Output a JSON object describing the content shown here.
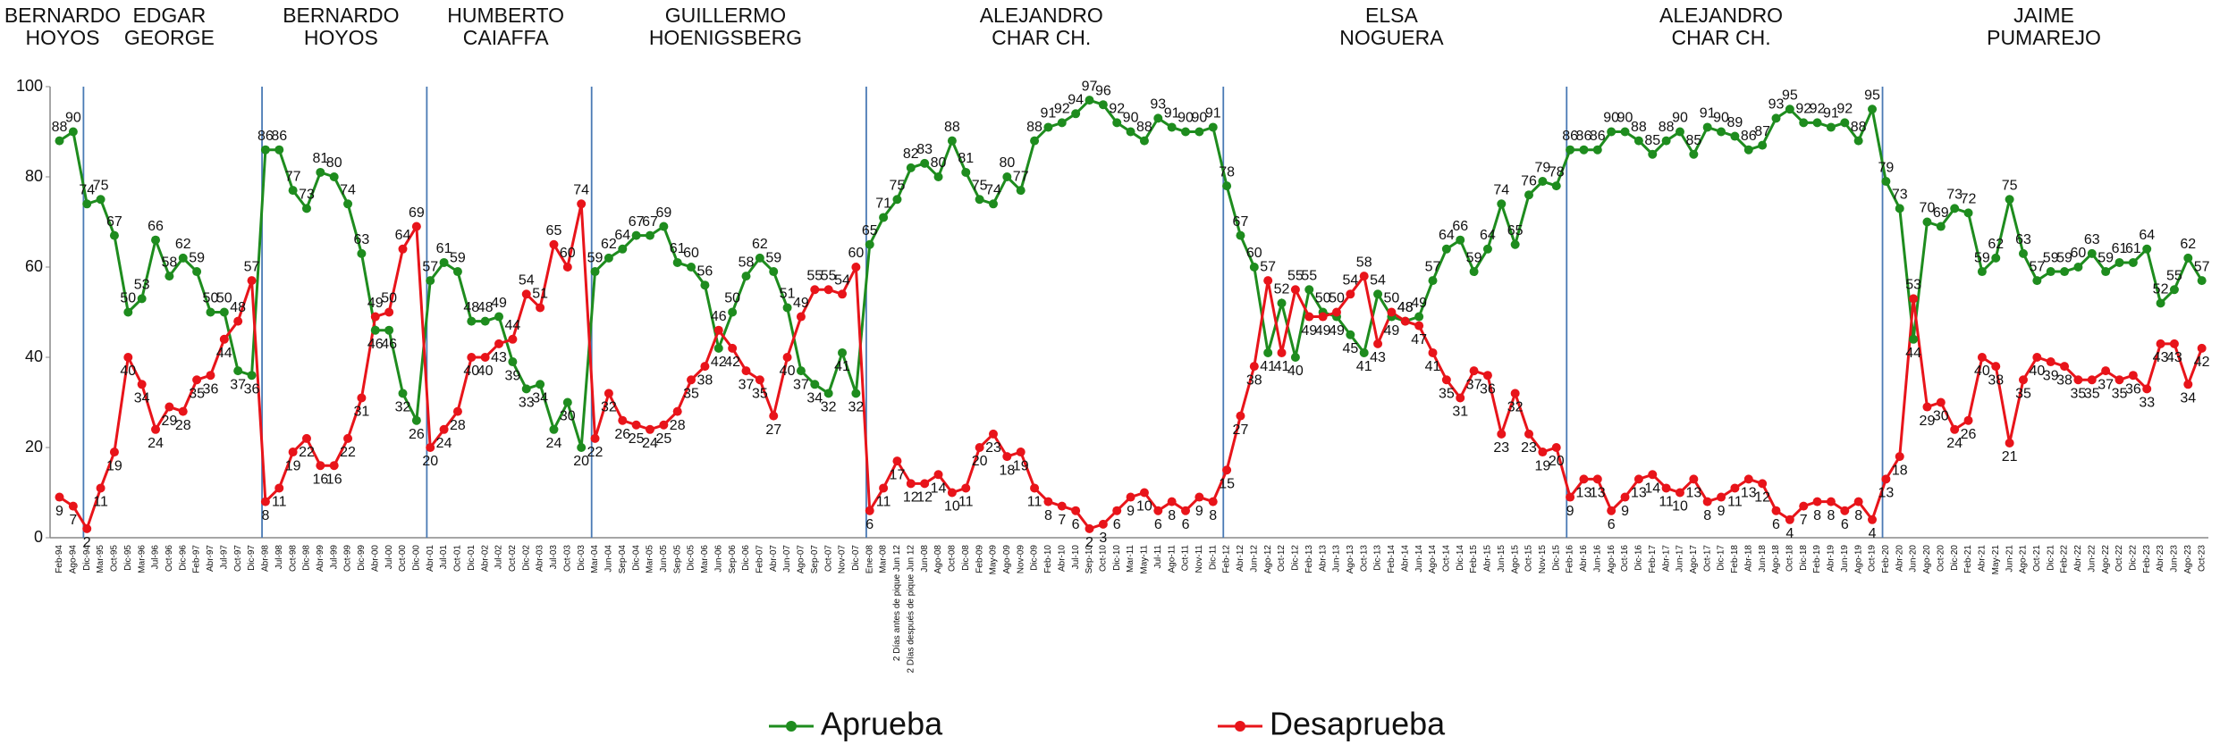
{
  "chart_data": {
    "type": "line",
    "governors": [
      [
        "BERNARDO",
        "HOYOS"
      ],
      [
        "EDGAR",
        "GEORGE"
      ],
      [
        "BERNARDO",
        "HOYOS"
      ],
      [
        "HUMBERTO",
        "CAIAFFA"
      ],
      [
        "GUILLERMO",
        "HOENIGSBERG"
      ],
      [
        "ALEJANDRO",
        "CHAR CH."
      ],
      [
        "ELSA",
        "NOGUERA"
      ],
      [
        "ALEJANDRO",
        "CHAR CH."
      ],
      [
        "JAIME",
        "PUMAREJO"
      ]
    ],
    "categories": [
      "Feb-94",
      "Ago-94",
      "Dic-94",
      "Mar-95",
      "Oct-95",
      "Dic-95",
      "Mar-96",
      "Jul-96",
      "Oct-96",
      "Dic-96",
      "Feb-97",
      "Abr-97",
      "Jul-97",
      "Oct-97",
      "Dic-97",
      "Abr-98",
      "Jul-98",
      "Oct-98",
      "Dic-98",
      "Abr-99",
      "Jul-99",
      "Oct-99",
      "Dic-99",
      "Abr-00",
      "Jul-00",
      "Oct-00",
      "Dic-00",
      "Abr-01",
      "Jul-01",
      "Oct-01",
      "Dic-01",
      "Abr-02",
      "Jul-02",
      "Oct-02",
      "Dic-02",
      "Abr-03",
      "Jul-03",
      "Oct-03",
      "Dic-03",
      "Mar-04",
      "Jun-04",
      "Sep-04",
      "Dic-04",
      "Mar-05",
      "Jun-05",
      "Sep-05",
      "Dic-05",
      "Mar-06",
      "Jun-06",
      "Sep-06",
      "Dic-06",
      "Feb-07",
      "Abr-07",
      "Jun-07",
      "Ago-07",
      "Sep-07",
      "Oct-07",
      "Nov-07",
      "Dic-07",
      "Ene-08",
      "Mar-08",
      "2 Días antes de pique Jun 12",
      "2 Días después de pique Jun 12",
      "Jun-08",
      "Ago-08",
      "Oct-08",
      "Dic-08",
      "Feb-09",
      "May-09",
      "Ago-09",
      "Nov-09",
      "Dic-09",
      "Feb-10",
      "Abr-10",
      "Jul-10",
      "Sep-10",
      "Oct-10",
      "Dic-10",
      "Mar-11",
      "May-11",
      "Jul-11",
      "Ago-11",
      "Oct-11",
      "Nov-11",
      "Dic-11",
      "Feb-12",
      "Abr-12",
      "Jun-12",
      "Ago-12",
      "Oct-12",
      "Dic-12",
      "Feb-13",
      "Abr-13",
      "Jun-13",
      "Ago-13",
      "Oct-13",
      "Dic-13",
      "Feb-14",
      "Abr-14",
      "Jun-14",
      "Ago-14",
      "Oct-14",
      "Dic-14",
      "Feb-15",
      "Abr-15",
      "Jun-15",
      "Ago-15",
      "Oct-15",
      "Nov-15",
      "Dic-15",
      "Feb-16",
      "Abr-16",
      "Jun-16",
      "Ago-16",
      "Oct-16",
      "Dic-16",
      "Feb-17",
      "Abr-17",
      "Jun-17",
      "Ago-17",
      "Oct-17",
      "Dic-17",
      "Feb-18",
      "Abr-18",
      "Jun-18",
      "Ago-18",
      "Oct-18",
      "Dic-18",
      "Feb-19",
      "Abr-19",
      "Jun-19",
      "Ago-19",
      "Oct-19",
      "Feb-20",
      "Abr-20",
      "Jun-20",
      "Ago-20",
      "Oct-20",
      "Dic-20",
      "Feb-21",
      "Abr-21",
      "May-21",
      "Jun-21",
      "Ago-21",
      "Oct-21",
      "Dic-21",
      "Feb-22",
      "Abr-22",
      "Jun-22",
      "Ago-22",
      "Oct-22",
      "Dic-22",
      "Feb-23",
      "Abr-23",
      "Jun-23",
      "Ago-23",
      "Oct-23"
    ],
    "series": [
      {
        "name": "Aprueba",
        "color": "#1e8c1e",
        "values": [
          88,
          90,
          74,
          75,
          67,
          50,
          53,
          66,
          58,
          62,
          59,
          50,
          50,
          37,
          36,
          86,
          86,
          77,
          73,
          81,
          80,
          74,
          63,
          46,
          46,
          32,
          26,
          57,
          61,
          59,
          48,
          48,
          49,
          39,
          33,
          34,
          24,
          30,
          20,
          59,
          62,
          64,
          67,
          67,
          69,
          61,
          60,
          56,
          42,
          50,
          58,
          62,
          59,
          51,
          37,
          34,
          32,
          41,
          32,
          65,
          71,
          75,
          82,
          83,
          80,
          88,
          81,
          75,
          74,
          80,
          77,
          88,
          91,
          92,
          94,
          97,
          96,
          92,
          90,
          88,
          93,
          91,
          90,
          90,
          91,
          78,
          67,
          60,
          41,
          52,
          40,
          55,
          50,
          49,
          45,
          41,
          54,
          49,
          48,
          49,
          57,
          64,
          66,
          59,
          64,
          74,
          65,
          76,
          79,
          78,
          86,
          86,
          86,
          90,
          90,
          88,
          85,
          88,
          90,
          85,
          91,
          90,
          89,
          86,
          87,
          93,
          95,
          92,
          92,
          91,
          92,
          88,
          95,
          79,
          73,
          44,
          70,
          69,
          73,
          72,
          59,
          62,
          75,
          63,
          57,
          59,
          59,
          60,
          63,
          59,
          61,
          61,
          64,
          52,
          55,
          62,
          57
        ]
      },
      {
        "name": "Desaprueba",
        "color": "#e8141a",
        "values": [
          9,
          7,
          2,
          11,
          19,
          40,
          34,
          24,
          29,
          28,
          35,
          36,
          44,
          48,
          57,
          8,
          11,
          19,
          22,
          16,
          16,
          22,
          31,
          49,
          50,
          64,
          69,
          20,
          24,
          28,
          40,
          40,
          43,
          44,
          54,
          51,
          65,
          60,
          74,
          22,
          32,
          26,
          25,
          24,
          25,
          28,
          35,
          38,
          46,
          42,
          37,
          35,
          27,
          40,
          49,
          55,
          55,
          54,
          60,
          6,
          11,
          17,
          12,
          12,
          14,
          10,
          11,
          20,
          23,
          18,
          19,
          11,
          8,
          7,
          6,
          2,
          3,
          6,
          9,
          10,
          6,
          8,
          6,
          9,
          8,
          15,
          27,
          38,
          57,
          41,
          55,
          49,
          49,
          50,
          54,
          58,
          43,
          50,
          48,
          47,
          41,
          35,
          31,
          37,
          36,
          23,
          32,
          23,
          19,
          20,
          9,
          13,
          13,
          6,
          9,
          13,
          14,
          11,
          10,
          13,
          8,
          9,
          11,
          13,
          12,
          6,
          4,
          7,
          8,
          8,
          6,
          8,
          4,
          13,
          18,
          53,
          29,
          30,
          24,
          26,
          40,
          38,
          21,
          35,
          40,
          39,
          38,
          35,
          35,
          37,
          35,
          36,
          33,
          43,
          43,
          34,
          42
        ]
      }
    ],
    "ylim": [
      0,
      100
    ],
    "yticks": [
      0,
      20,
      40,
      60,
      80,
      100
    ]
  }
}
